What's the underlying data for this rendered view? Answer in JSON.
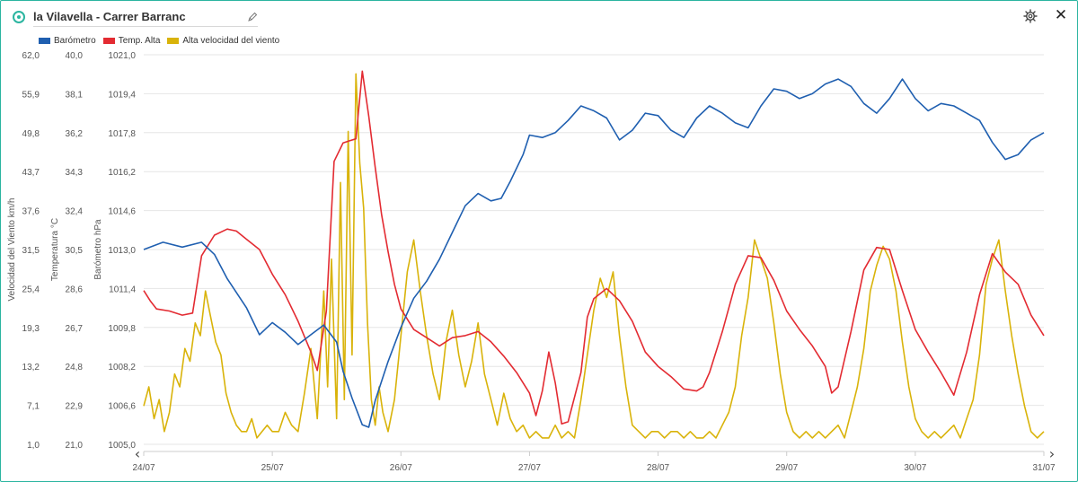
{
  "header": {
    "title": "la Vilavella - Carrer Barranc",
    "status_icon": "radio-indicator-icon",
    "edit_icon": "pencil-icon",
    "settings_icon": "gear-icon",
    "close_icon": "close-icon",
    "close_glyph": "✕"
  },
  "colors": {
    "accent": "#2bb5a0",
    "pressure": "#1f5fb0",
    "temperature": "#e32b32",
    "wind": "#d9b30a",
    "grid": "#e6e6e6",
    "text": "#555555"
  },
  "nav": {
    "prev_glyph": "‹",
    "next_glyph": "›"
  },
  "chart_data": {
    "type": "line",
    "title": "",
    "x_dates": [
      "24/07",
      "25/07",
      "26/07",
      "27/07",
      "28/07",
      "29/07",
      "30/07",
      "31/07"
    ],
    "xlim": [
      0,
      7
    ],
    "grid": "horizontal",
    "legend_placement": "top-left",
    "axes": [
      {
        "id": "wind",
        "label": "Velocidad del Viento km/h",
        "ylim": [
          1.0,
          62.0
        ],
        "ticks": [
          "1,0",
          "7,1",
          "13,2",
          "19,3",
          "25,4",
          "31,5",
          "37,6",
          "43,7",
          "49,8",
          "55,9",
          "62,0"
        ]
      },
      {
        "id": "temp",
        "label": "Temperatura °C",
        "ylim": [
          21.0,
          40.0
        ],
        "ticks": [
          "21,0",
          "22,9",
          "24,8",
          "26,7",
          "28,6",
          "30,5",
          "32,4",
          "34,3",
          "36,2",
          "38,1",
          "40,0"
        ]
      },
      {
        "id": "pressure",
        "label": "Barómetro hPa",
        "ylim": [
          1005.0,
          1021.0
        ],
        "ticks": [
          "1005,0",
          "1006,6",
          "1008,2",
          "1009,8",
          "1011,4",
          "1013,0",
          "1014,6",
          "1016,2",
          "1017,8",
          "1019,4",
          "1021,0"
        ]
      }
    ],
    "series": [
      {
        "name": "Barómetro",
        "axis": "pressure",
        "color": "#1f5fb0",
        "x": [
          0,
          0.15,
          0.3,
          0.45,
          0.55,
          0.65,
          0.8,
          0.9,
          1.0,
          1.1,
          1.2,
          1.3,
          1.4,
          1.5,
          1.55,
          1.62,
          1.7,
          1.75,
          1.8,
          1.9,
          2.0,
          2.1,
          2.2,
          2.3,
          2.4,
          2.5,
          2.6,
          2.7,
          2.78,
          2.85,
          2.95,
          3.0,
          3.1,
          3.2,
          3.3,
          3.4,
          3.5,
          3.6,
          3.7,
          3.8,
          3.9,
          4.0,
          4.1,
          4.2,
          4.3,
          4.4,
          4.5,
          4.6,
          4.7,
          4.8,
          4.9,
          5.0,
          5.1,
          5.2,
          5.3,
          5.4,
          5.5,
          5.6,
          5.7,
          5.8,
          5.9,
          6.0,
          6.1,
          6.2,
          6.3,
          6.4,
          6.5,
          6.6,
          6.7,
          6.8,
          6.9,
          7.0
        ],
        "y": [
          1013.0,
          1013.3,
          1013.1,
          1013.3,
          1012.8,
          1011.8,
          1010.6,
          1009.5,
          1010.0,
          1009.6,
          1009.1,
          1009.5,
          1009.9,
          1009.2,
          1008.0,
          1006.9,
          1005.8,
          1005.7,
          1006.8,
          1008.4,
          1009.8,
          1011.0,
          1011.7,
          1012.6,
          1013.7,
          1014.8,
          1015.3,
          1015.0,
          1015.1,
          1015.8,
          1016.9,
          1017.7,
          1017.6,
          1017.8,
          1018.3,
          1018.9,
          1018.7,
          1018.4,
          1017.5,
          1017.9,
          1018.6,
          1018.5,
          1017.9,
          1017.6,
          1018.4,
          1018.9,
          1018.6,
          1018.2,
          1018.0,
          1018.9,
          1019.6,
          1019.5,
          1019.2,
          1019.4,
          1019.8,
          1020.0,
          1019.7,
          1019.0,
          1018.6,
          1019.2,
          1020.0,
          1019.2,
          1018.7,
          1019.0,
          1018.9,
          1018.6,
          1018.3,
          1017.4,
          1016.7,
          1016.9,
          1017.5,
          1017.8
        ]
      },
      {
        "name": "Temp. Alta",
        "axis": "temp",
        "color": "#e32b32",
        "x": [
          0,
          0.05,
          0.1,
          0.2,
          0.3,
          0.38,
          0.45,
          0.55,
          0.65,
          0.72,
          0.8,
          0.9,
          1.0,
          1.1,
          1.2,
          1.3,
          1.35,
          1.42,
          1.48,
          1.55,
          1.6,
          1.65,
          1.7,
          1.75,
          1.8,
          1.85,
          1.9,
          1.95,
          2.0,
          2.1,
          2.2,
          2.3,
          2.4,
          2.5,
          2.6,
          2.7,
          2.8,
          2.9,
          3.0,
          3.05,
          3.1,
          3.15,
          3.2,
          3.25,
          3.3,
          3.4,
          3.45,
          3.5,
          3.6,
          3.7,
          3.8,
          3.9,
          4.0,
          4.1,
          4.2,
          4.3,
          4.35,
          4.4,
          4.5,
          4.6,
          4.7,
          4.8,
          4.9,
          5.0,
          5.1,
          5.2,
          5.3,
          5.35,
          5.4,
          5.5,
          5.6,
          5.7,
          5.8,
          5.9,
          6.0,
          6.1,
          6.2,
          6.3,
          6.4,
          6.5,
          6.6,
          6.7,
          6.8,
          6.9,
          7.0
        ],
        "y": [
          28.5,
          28.0,
          27.6,
          27.5,
          27.3,
          27.4,
          30.2,
          31.2,
          31.5,
          31.4,
          31.0,
          30.5,
          29.3,
          28.3,
          27.0,
          25.5,
          24.6,
          27.5,
          34.8,
          35.7,
          35.8,
          35.9,
          39.2,
          37.0,
          34.5,
          32.2,
          30.4,
          28.8,
          27.6,
          26.6,
          26.2,
          25.8,
          26.2,
          26.3,
          26.5,
          26.0,
          25.3,
          24.5,
          23.5,
          22.4,
          23.6,
          25.5,
          24.0,
          22.0,
          22.1,
          24.5,
          27.2,
          28.1,
          28.6,
          28.0,
          27.0,
          25.5,
          24.8,
          24.3,
          23.7,
          23.6,
          23.8,
          24.5,
          26.5,
          28.8,
          30.2,
          30.1,
          29.0,
          27.5,
          26.6,
          25.8,
          24.8,
          23.5,
          23.8,
          26.5,
          29.5,
          30.6,
          30.5,
          28.5,
          26.6,
          25.5,
          24.5,
          23.4,
          25.5,
          28.3,
          30.3,
          29.4,
          28.8,
          27.3,
          26.3
        ]
      },
      {
        "name": "Alta velocidad del viento",
        "axis": "wind",
        "color": "#d9b30a",
        "x": [
          0,
          0.04,
          0.08,
          0.12,
          0.16,
          0.2,
          0.24,
          0.28,
          0.32,
          0.36,
          0.4,
          0.44,
          0.48,
          0.52,
          0.56,
          0.6,
          0.64,
          0.68,
          0.72,
          0.76,
          0.8,
          0.84,
          0.88,
          0.92,
          0.96,
          1.0,
          1.05,
          1.1,
          1.15,
          1.2,
          1.25,
          1.3,
          1.35,
          1.4,
          1.43,
          1.46,
          1.5,
          1.53,
          1.56,
          1.59,
          1.62,
          1.65,
          1.68,
          1.71,
          1.74,
          1.77,
          1.8,
          1.83,
          1.86,
          1.9,
          1.95,
          2.0,
          2.05,
          2.1,
          2.15,
          2.2,
          2.25,
          2.3,
          2.35,
          2.4,
          2.45,
          2.5,
          2.55,
          2.6,
          2.65,
          2.7,
          2.75,
          2.8,
          2.85,
          2.9,
          2.95,
          3.0,
          3.05,
          3.1,
          3.15,
          3.2,
          3.25,
          3.3,
          3.35,
          3.4,
          3.45,
          3.5,
          3.55,
          3.6,
          3.65,
          3.7,
          3.75,
          3.8,
          3.85,
          3.9,
          3.95,
          4.0,
          4.05,
          4.1,
          4.15,
          4.2,
          4.25,
          4.3,
          4.35,
          4.4,
          4.45,
          4.5,
          4.55,
          4.6,
          4.65,
          4.7,
          4.75,
          4.8,
          4.85,
          4.9,
          4.95,
          5.0,
          5.05,
          5.1,
          5.15,
          5.2,
          5.25,
          5.3,
          5.35,
          5.4,
          5.45,
          5.5,
          5.55,
          5.6,
          5.65,
          5.7,
          5.75,
          5.8,
          5.85,
          5.9,
          5.95,
          6.0,
          6.05,
          6.1,
          6.15,
          6.2,
          6.25,
          6.3,
          6.35,
          6.4,
          6.45,
          6.5,
          6.55,
          6.6,
          6.65,
          6.7,
          6.75,
          6.8,
          6.85,
          6.9,
          6.95,
          7.0
        ],
        "y": [
          7,
          10,
          5,
          8,
          3,
          6,
          12,
          10,
          16,
          14,
          20,
          18,
          25,
          21,
          17,
          15,
          9,
          6,
          4,
          3,
          3,
          5,
          2,
          3,
          4,
          3,
          3,
          6,
          4,
          3,
          9,
          16,
          5,
          25,
          10,
          30,
          5,
          42,
          8,
          50,
          15,
          59,
          45,
          38,
          20,
          8,
          4,
          10,
          6,
          3,
          8,
          18,
          28,
          33,
          25,
          18,
          12,
          8,
          17,
          22,
          15,
          10,
          14,
          20,
          12,
          8,
          4,
          9,
          5,
          3,
          4,
          2,
          3,
          2,
          2,
          4,
          2,
          3,
          2,
          8,
          15,
          22,
          27,
          24,
          28,
          18,
          10,
          4,
          3,
          2,
          3,
          3,
          2,
          3,
          3,
          2,
          3,
          2,
          2,
          3,
          2,
          4,
          6,
          10,
          18,
          24,
          33,
          30,
          27,
          20,
          12,
          6,
          3,
          2,
          3,
          2,
          3,
          2,
          3,
          4,
          2,
          6,
          10,
          16,
          25,
          29,
          32,
          30,
          25,
          17,
          10,
          5,
          3,
          2,
          3,
          2,
          3,
          4,
          2,
          5,
          8,
          15,
          26,
          30,
          33,
          25,
          18,
          12,
          7,
          3,
          2,
          3
        ]
      }
    ]
  }
}
